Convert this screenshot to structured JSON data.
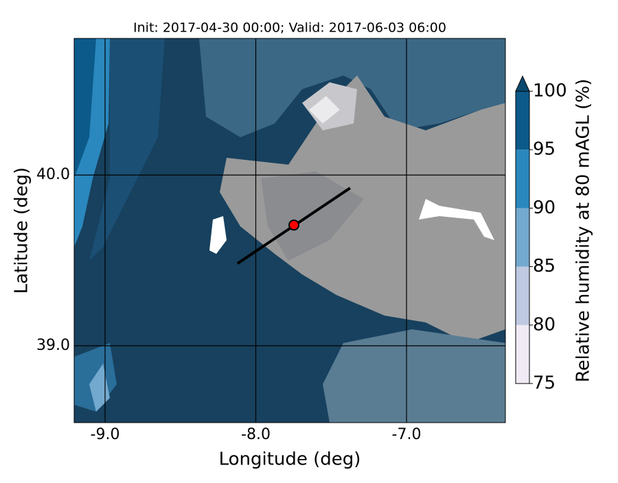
{
  "chart_data": {
    "type": "contour_map",
    "title": "Init: 2017-04-30 00:00; Valid: 2017-06-03 06:00",
    "xlabel": "Longitude (deg)",
    "ylabel": "Latitude (deg)",
    "xlim": [
      -9.205,
      -6.344
    ],
    "ylim": [
      38.55,
      40.8
    ],
    "xticks": [
      {
        "value": -9,
        "label": "-9.0"
      },
      {
        "value": -8,
        "label": "-8.0"
      },
      {
        "value": -7,
        "label": "-7.0"
      }
    ],
    "yticks": [
      {
        "value": 39,
        "label": "39.0"
      },
      {
        "value": 40,
        "label": "40.0"
      }
    ],
    "grid": true,
    "grid_color": "#000000",
    "cross_section": {
      "x": [
        -8.121,
        -7.374
      ],
      "y": [
        39.482,
        39.924
      ],
      "color": "#000000"
    },
    "site": {
      "x": -7.747,
      "y": 39.707,
      "color": "#ff0000"
    },
    "colorbar": {
      "label": "Relative humidity at 80 mAGL (%)",
      "levels": [
        75,
        80,
        85,
        90,
        95,
        100
      ],
      "colors": [
        "#efeaf4",
        "#bfc9e1",
        "#74a9cf",
        "#2a88be",
        "#0b5a8a"
      ],
      "extend": "max",
      "over_color": "#0a4a70"
    }
  }
}
